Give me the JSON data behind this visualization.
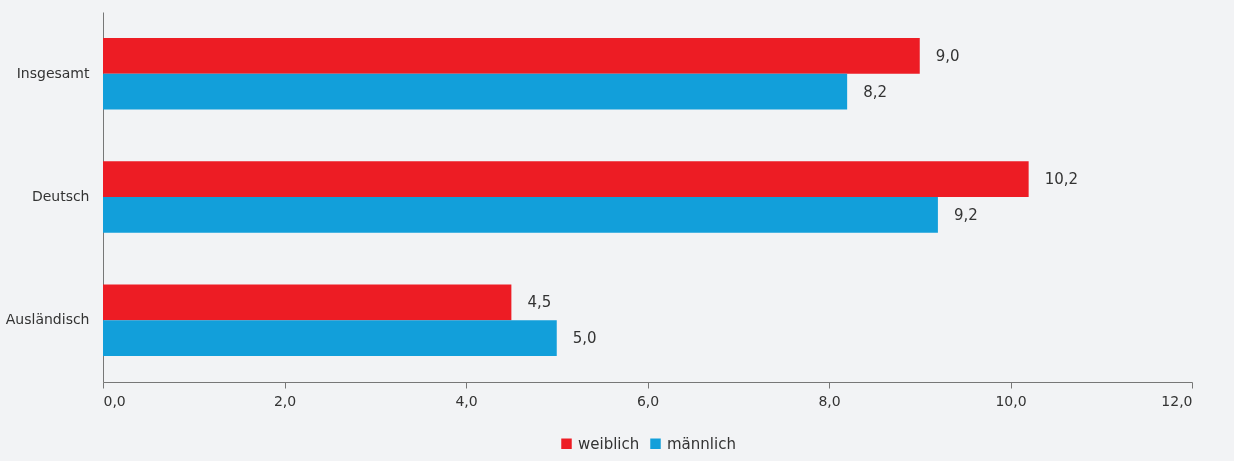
{
  "chart_data": {
    "type": "bar",
    "orientation": "horizontal",
    "categories": [
      "Insgesamt",
      "Deutsch",
      "Ausländisch"
    ],
    "series": [
      {
        "name": "weiblich",
        "color": "#ed1c24",
        "values": [
          9.0,
          10.2,
          4.5
        ],
        "value_labels": [
          "9,0",
          "10,2",
          "4,5"
        ]
      },
      {
        "name": "männlich",
        "color": "#129fda",
        "values": [
          8.2,
          9.2,
          5.0
        ],
        "value_labels": [
          "8,2",
          "9,2",
          "5,0"
        ]
      }
    ],
    "xlim": [
      0,
      12
    ],
    "xticks": [
      {
        "value": 0,
        "label": "0,0"
      },
      {
        "value": 2,
        "label": "2,0"
      },
      {
        "value": 4,
        "label": "4,0"
      },
      {
        "value": 6,
        "label": "6,0"
      },
      {
        "value": 8,
        "label": "8,0"
      },
      {
        "value": 10,
        "label": "10,0"
      },
      {
        "value": 12,
        "label": "12,0"
      }
    ],
    "grid": false,
    "legend": "bottom"
  }
}
